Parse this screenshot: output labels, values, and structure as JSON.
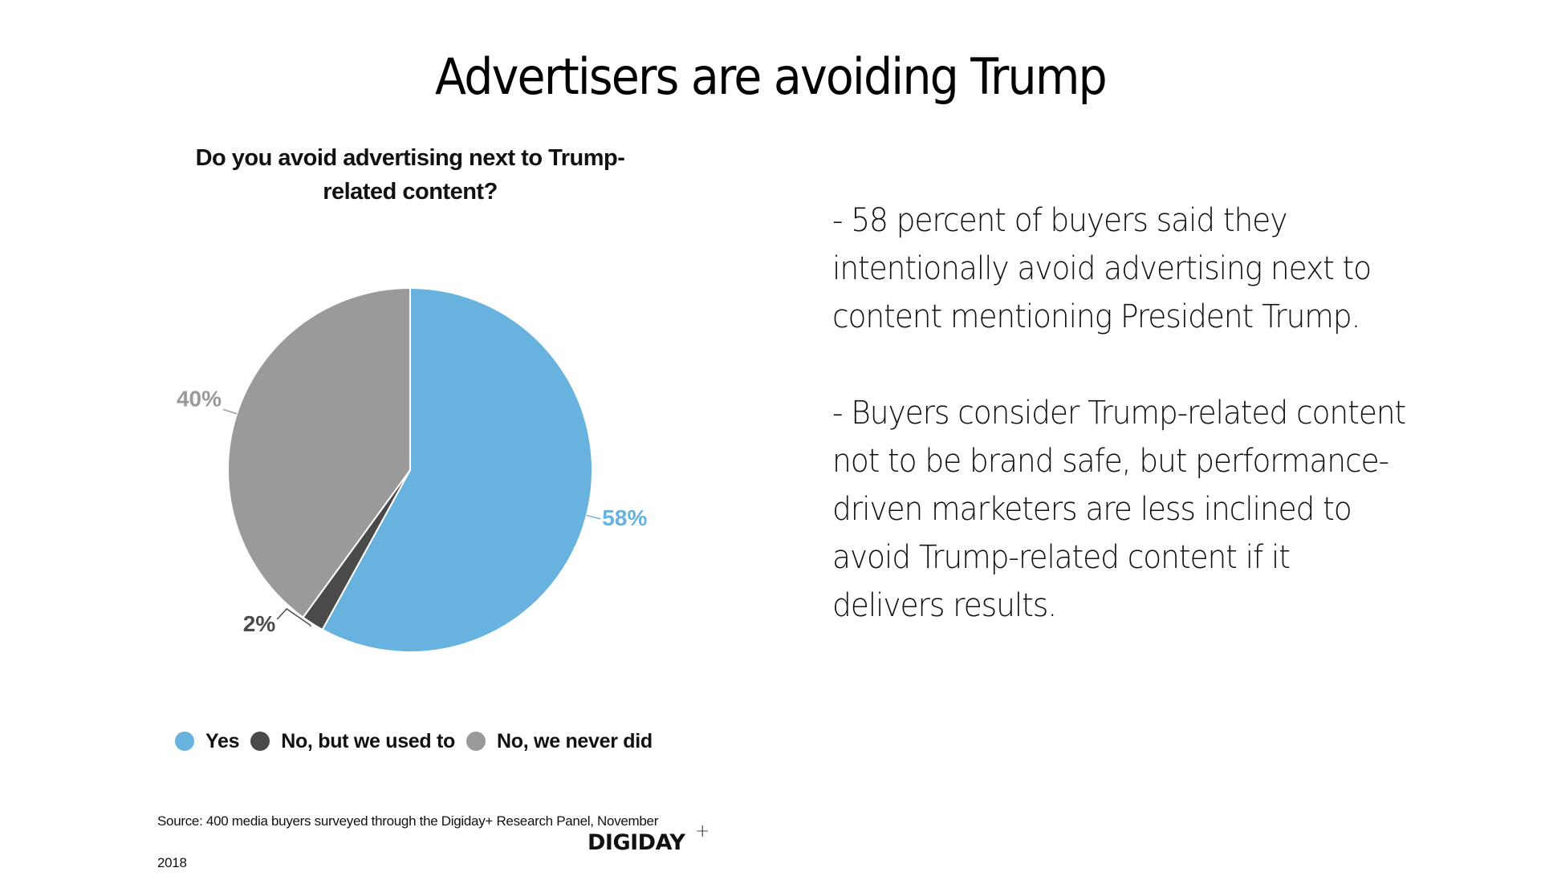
{
  "slide": {
    "title": "Advertisers are avoiding Trump",
    "body_paragraphs": [
      "- 58 percent of buyers said they intentionally avoid advertising next to content mentioning President Trump.",
      "- Buyers consider Trump-related content not to be brand safe, but performance-driven marketers are less inclined to avoid Trump-related content if it delivers results."
    ],
    "source_line1": "Source: 400 media buyers surveyed through the Digiday+ Research Panel, November",
    "source_line2": "2018",
    "logo_text": "DIGIDAY",
    "logo_plus": "+"
  },
  "chart_data": {
    "type": "pie",
    "title": "Do you avoid advertising next to Trump-related content?",
    "title_lines": [
      "Do you avoid advertising next to Trump-",
      "related content?"
    ],
    "categories": [
      "Yes",
      "No, but we used to",
      "No, we never did"
    ],
    "values": [
      58,
      2,
      40
    ],
    "value_labels": [
      "58%",
      "2%",
      "40%"
    ],
    "colors": [
      "#67b2df",
      "#4a4a4a",
      "#9a9a9a"
    ],
    "label_colors": [
      "#67b2df",
      "#4a4a4a",
      "#9a9a9a"
    ],
    "start_angle_deg": 0,
    "direction": "clockwise",
    "legend_position": "bottom"
  }
}
